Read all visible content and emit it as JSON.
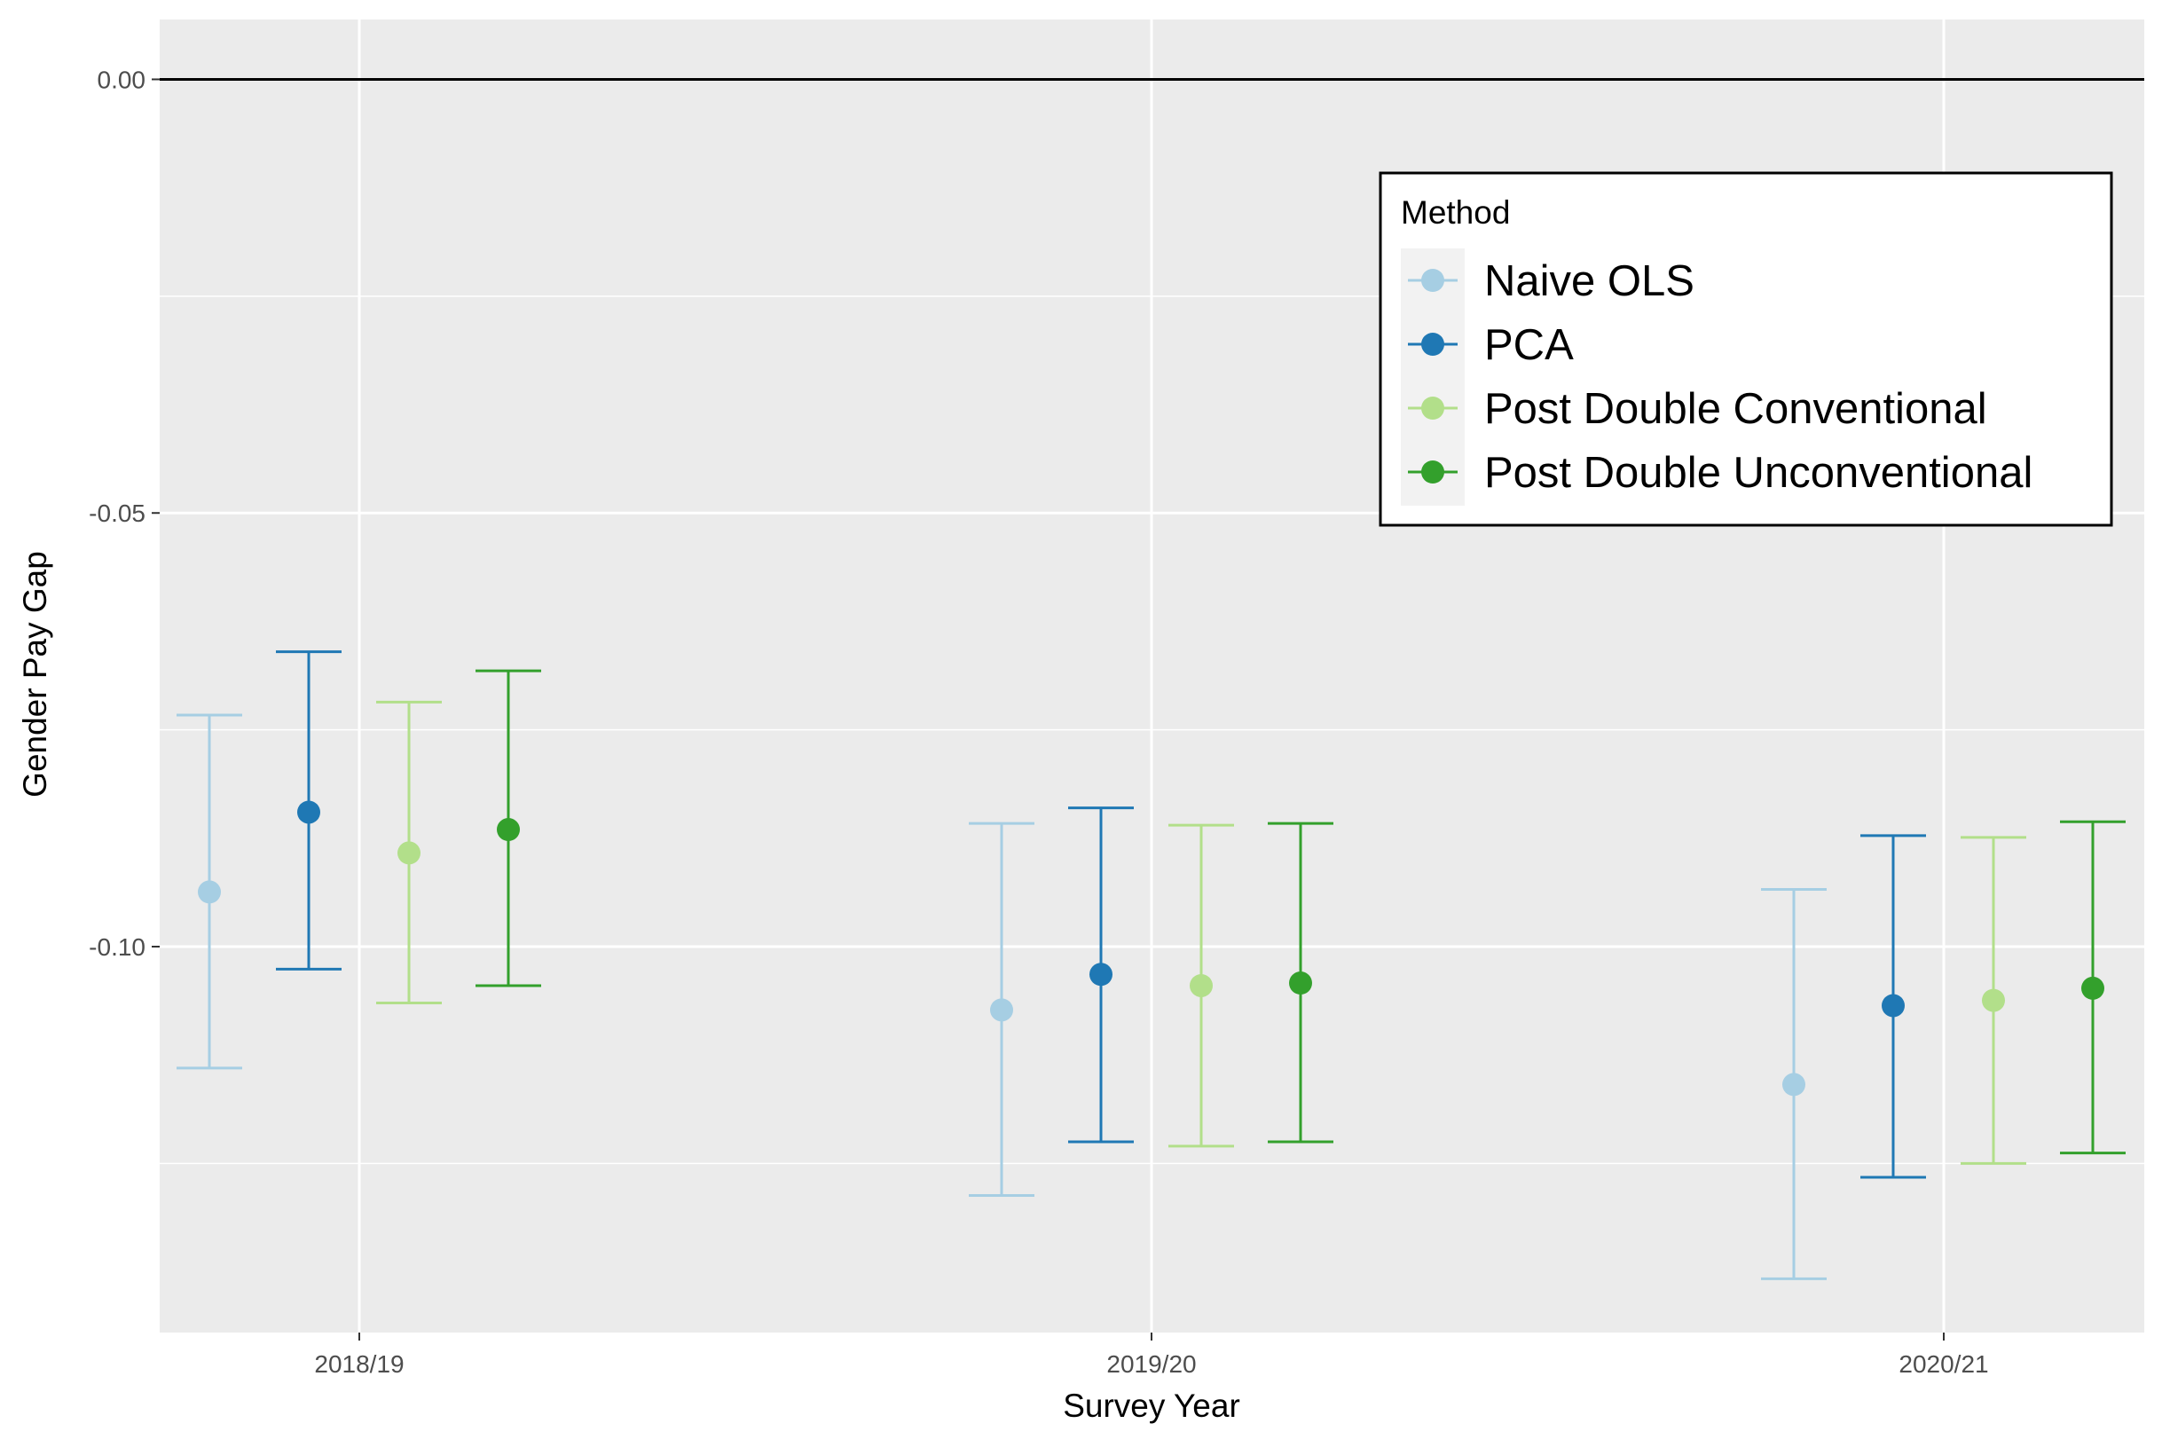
{
  "chart_data": {
    "type": "errorbar",
    "xlabel": "Survey Year",
    "ylabel": "Gender Pay Gap",
    "categories": [
      "2018/19",
      "2019/20",
      "2020/21"
    ],
    "y_ticks": [
      0.0,
      -0.05,
      -0.1
    ],
    "y_tick_labels": [
      "0.00",
      "-0.05",
      "-0.10"
    ],
    "ylim": [
      -0.1445,
      0.0069
    ],
    "reference_line": 0.0,
    "grid": true,
    "legend": {
      "title": "Method",
      "placement": "top-right"
    },
    "series": [
      {
        "name": "Naive OLS",
        "color": "#A6CEE3",
        "estimate": [
          -0.0937,
          -0.1073,
          -0.1159
        ],
        "lower": [
          -0.114,
          -0.1287,
          -0.1383
        ],
        "upper": [
          -0.0733,
          -0.0858,
          -0.0934
        ]
      },
      {
        "name": "PCA",
        "color": "#1F78B4",
        "estimate": [
          -0.0845,
          -0.1032,
          -0.1068
        ],
        "lower": [
          -0.1026,
          -0.1225,
          -0.1266
        ],
        "upper": [
          -0.066,
          -0.084,
          -0.0872
        ]
      },
      {
        "name": "Post Double Conventional",
        "color": "#B2DF8A",
        "estimate": [
          -0.0892,
          -0.1045,
          -0.1062
        ],
        "lower": [
          -0.1065,
          -0.123,
          -0.125
        ],
        "upper": [
          -0.0718,
          -0.086,
          -0.0874
        ]
      },
      {
        "name": "Post Double Unconventional",
        "color": "#33A02C",
        "estimate": [
          -0.0865,
          -0.1042,
          -0.1048
        ],
        "lower": [
          -0.1045,
          -0.1225,
          -0.1238
        ],
        "upper": [
          -0.0682,
          -0.0858,
          -0.0856
        ]
      }
    ]
  }
}
